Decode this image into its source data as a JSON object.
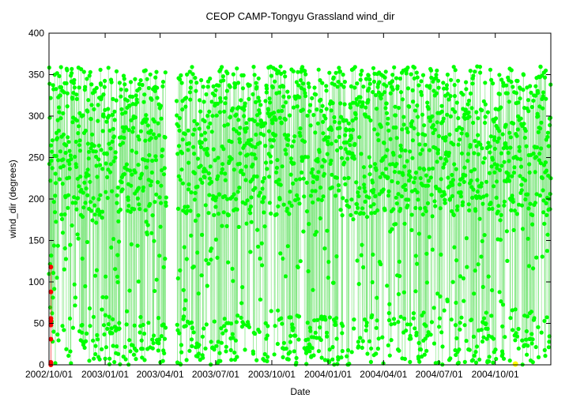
{
  "chart_data": {
    "type": "scatter",
    "title": "CEOP CAMP-Tongyu Grassland  wind_dir",
    "xlabel": "Date",
    "ylabel": "wind_dir (degrees)",
    "xlim": [
      "2002/10/01",
      "2004/12/31"
    ],
    "ylim": [
      0,
      400
    ],
    "yticks": [
      0,
      50,
      100,
      150,
      200,
      250,
      300,
      350,
      400
    ],
    "xticks": [
      "2002/10/01",
      "2003/01/01",
      "2003/04/01",
      "2003/07/01",
      "2003/10/01",
      "2004/01/01",
      "2004/04/01",
      "2004/07/01",
      "2004/10/01"
    ],
    "xtick_labels": [
      "2002/10/01",
      "2003/01/01",
      "2003/04/01",
      "2003/07/01",
      "2003/10/01",
      "2004/01/01",
      "2004/04/01",
      "2004/07/01",
      "2004/10/01"
    ],
    "grid": false,
    "legend": "none",
    "data_gaps": [
      [
        "2003/04/11",
        "2003/04/28"
      ]
    ],
    "series": [
      {
        "name": "",
        "color": "#00ff00",
        "style": "dense lines and points",
        "x_range": [
          "2002/10/01",
          "2004/12/31"
        ],
        "y_range": [
          0,
          360
        ]
      },
      {
        "name": "",
        "color": "#ff0000",
        "style": "points",
        "x": [
          "2002/10/04",
          "2002/10/04",
          "2002/10/04",
          "2002/10/04",
          "2002/10/04",
          "2002/10/04",
          "2002/10/04",
          "2002/10/04",
          "2002/10/04"
        ],
        "y": [
          118,
          88,
          56,
          53,
          48,
          31,
          3,
          1,
          0
        ]
      },
      {
        "name": "",
        "color": "#ffff00",
        "style": "points",
        "x": [
          "2004/11/03"
        ],
        "y": [
          1
        ]
      }
    ]
  }
}
